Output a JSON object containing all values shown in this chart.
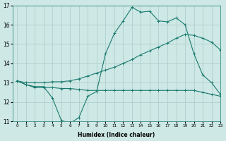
{
  "xlabel": "Humidex (Indice chaleur)",
  "background_color": "#cde8e5",
  "grid_color": "#b0d0cc",
  "line_color": "#1a7a6e",
  "xlim": [
    -0.5,
    23
  ],
  "ylim": [
    11,
    17
  ],
  "xticks": [
    0,
    1,
    2,
    3,
    4,
    5,
    6,
    7,
    8,
    9,
    10,
    11,
    12,
    13,
    14,
    15,
    16,
    17,
    18,
    19,
    20,
    21,
    22,
    23
  ],
  "yticks": [
    11,
    12,
    13,
    14,
    15,
    16,
    17
  ],
  "series": [
    {
      "x": [
        0,
        1,
        2,
        3,
        4,
        5,
        6,
        7,
        8,
        9,
        10,
        11,
        12,
        13,
        14,
        15,
        16,
        17,
        18,
        19,
        20,
        21,
        22,
        23
      ],
      "y": [
        13.1,
        12.9,
        12.8,
        12.8,
        12.2,
        11.05,
        10.9,
        11.2,
        12.3,
        12.55,
        14.5,
        15.55,
        16.2,
        16.9,
        16.65,
        16.7,
        16.2,
        16.15,
        16.35,
        16.0,
        14.5,
        13.4,
        13.0,
        12.4
      ]
    },
    {
      "x": [
        0,
        1,
        2,
        3,
        4,
        5,
        6,
        7,
        8,
        9,
        10,
        11,
        12,
        13,
        14,
        15,
        16,
        17,
        18,
        19,
        20,
        21,
        22,
        23
      ],
      "y": [
        13.1,
        13.0,
        13.0,
        13.0,
        13.05,
        13.05,
        13.1,
        13.2,
        13.35,
        13.5,
        13.65,
        13.8,
        14.0,
        14.2,
        14.45,
        14.65,
        14.85,
        15.05,
        15.3,
        15.5,
        15.45,
        15.3,
        15.1,
        14.7
      ]
    },
    {
      "x": [
        0,
        1,
        2,
        3,
        4,
        5,
        6,
        7,
        8,
        9,
        10,
        11,
        12,
        13,
        14,
        15,
        16,
        17,
        18,
        19,
        20,
        21,
        22,
        23
      ],
      "y": [
        13.1,
        12.9,
        12.75,
        12.75,
        12.75,
        12.7,
        12.7,
        12.65,
        12.6,
        12.6,
        12.6,
        12.6,
        12.6,
        12.6,
        12.6,
        12.6,
        12.6,
        12.6,
        12.6,
        12.6,
        12.6,
        12.5,
        12.4,
        12.3
      ]
    }
  ]
}
